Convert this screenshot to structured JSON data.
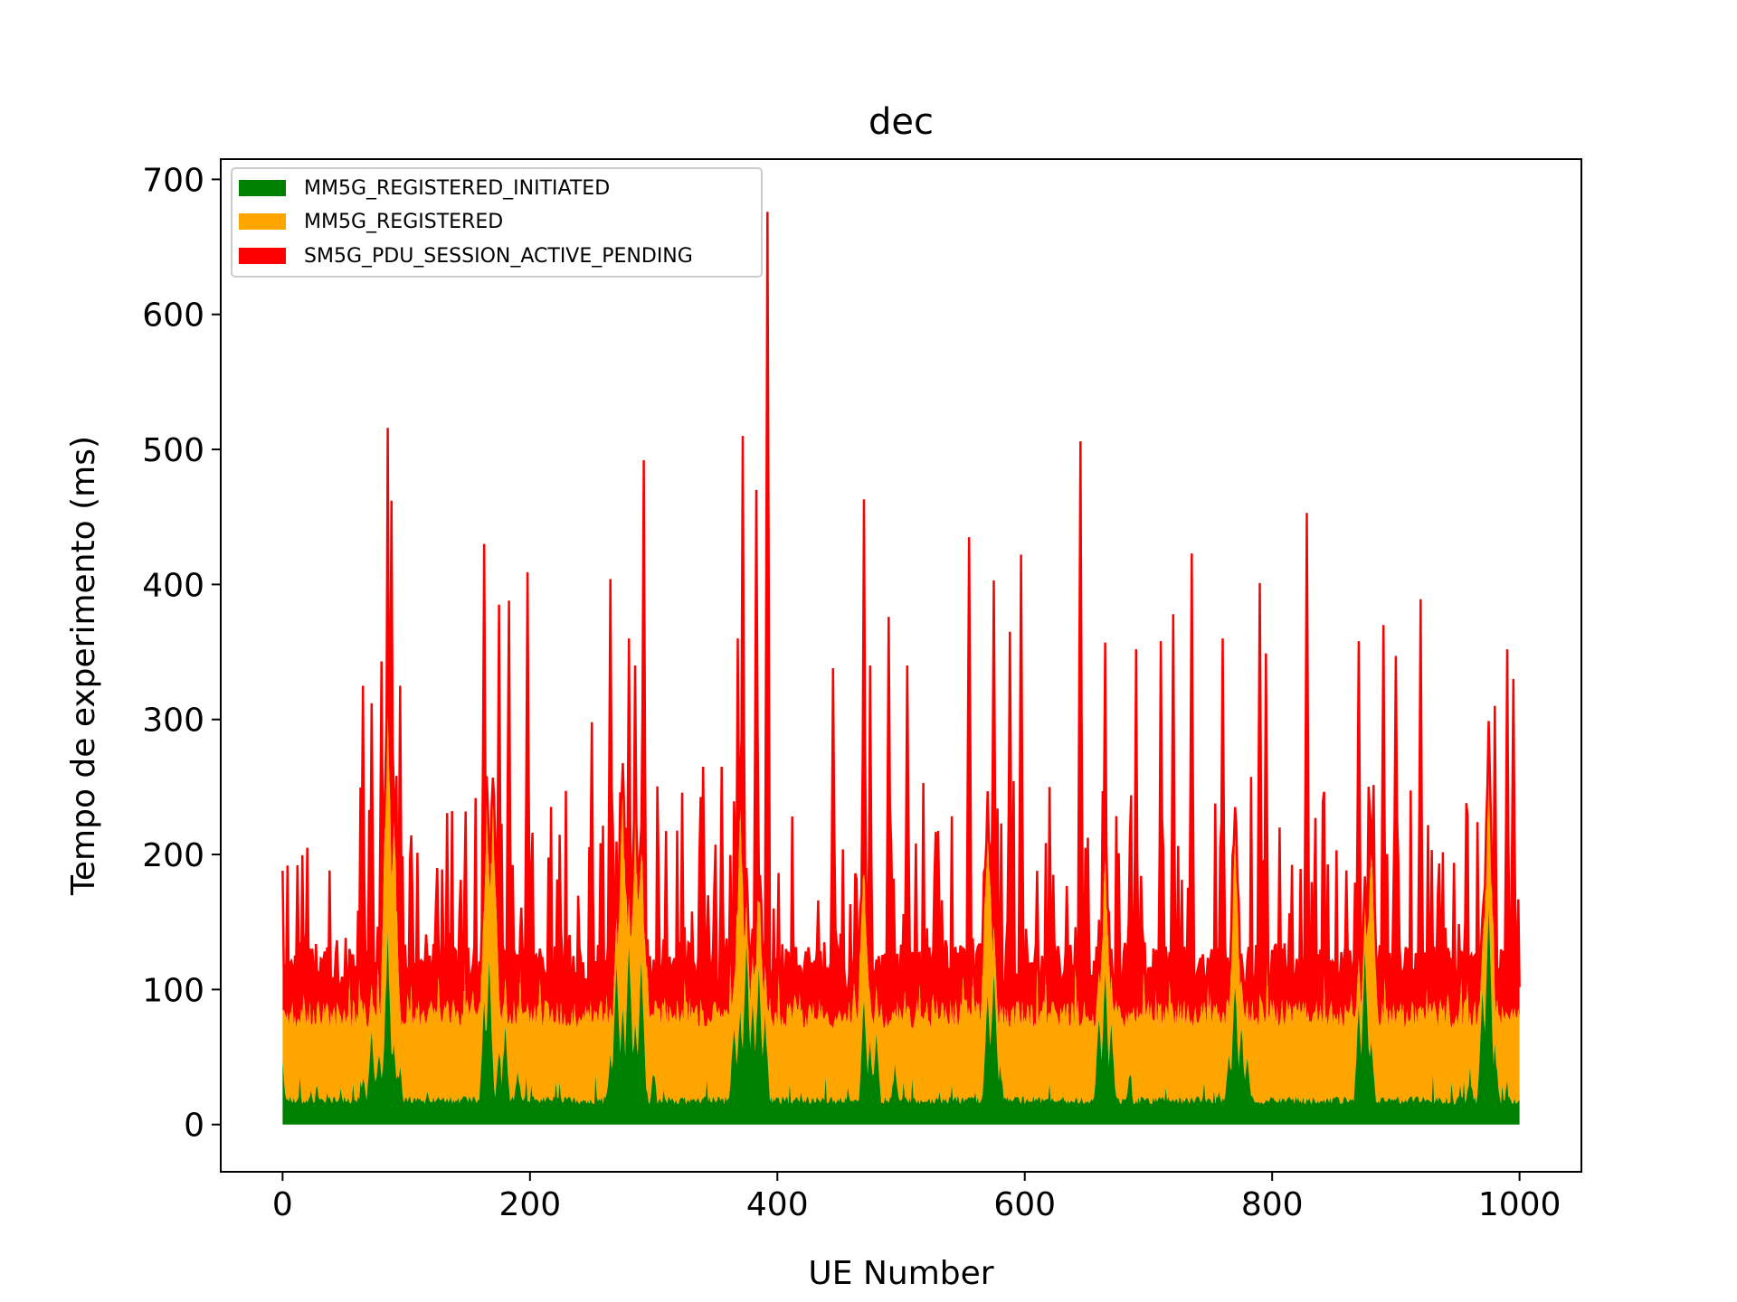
{
  "chart_data": {
    "type": "area",
    "stacked": true,
    "title": "dec",
    "xlabel": "UE Number",
    "ylabel": "Tempo de experimento (ms)",
    "xlim": [
      -50,
      1050
    ],
    "ylim": [
      -35,
      715
    ],
    "xticks": [
      0,
      200,
      400,
      600,
      800,
      1000
    ],
    "yticks": [
      0,
      100,
      200,
      300,
      400,
      500,
      600,
      700
    ],
    "legend_position": "upper-left",
    "legend": [
      {
        "name": "MM5G_REGISTERED_INITIATED",
        "color": "#008000"
      },
      {
        "name": "MM5G_REGISTERED",
        "color": "#ffa500"
      },
      {
        "name": "SM5G_PDU_SESSION_ACTIVE_PENDING",
        "color": "#ff0000"
      }
    ],
    "series": [
      {
        "name": "MM5G_REGISTERED_INITIATED",
        "color": "#008000",
        "baseline": 18,
        "spikes": [
          [
            0,
            45
          ],
          [
            65,
            35
          ],
          [
            72,
            70
          ],
          [
            78,
            55
          ],
          [
            82,
            50
          ],
          [
            85,
            140
          ],
          [
            90,
            60
          ],
          [
            95,
            40
          ],
          [
            163,
            90
          ],
          [
            167,
            120
          ],
          [
            175,
            55
          ],
          [
            180,
            70
          ],
          [
            190,
            40
          ],
          [
            265,
            55
          ],
          [
            270,
            120
          ],
          [
            275,
            85
          ],
          [
            280,
            135
          ],
          [
            285,
            75
          ],
          [
            290,
            120
          ],
          [
            300,
            40
          ],
          [
            365,
            75
          ],
          [
            370,
            85
          ],
          [
            375,
            135
          ],
          [
            380,
            90
          ],
          [
            385,
            115
          ],
          [
            390,
            80
          ],
          [
            470,
            95
          ],
          [
            475,
            60
          ],
          [
            480,
            65
          ],
          [
            495,
            45
          ],
          [
            570,
            100
          ],
          [
            575,
            115
          ],
          [
            580,
            45
          ],
          [
            660,
            80
          ],
          [
            665,
            110
          ],
          [
            670,
            75
          ],
          [
            685,
            40
          ],
          [
            765,
            50
          ],
          [
            770,
            105
          ],
          [
            775,
            75
          ],
          [
            780,
            50
          ],
          [
            870,
            85
          ],
          [
            875,
            130
          ],
          [
            880,
            60
          ],
          [
            960,
            40
          ],
          [
            970,
            95
          ],
          [
            975,
            165
          ],
          [
            980,
            60
          ],
          [
            990,
            30
          ]
        ]
      },
      {
        "name": "MM5G_REGISTERED",
        "color": "#ffa500",
        "baseline": 82,
        "peaks": [
          [
            85,
            310
          ],
          [
            90,
            230
          ],
          [
            165,
            230
          ],
          [
            170,
            245
          ],
          [
            275,
            255
          ],
          [
            285,
            230
          ],
          [
            290,
            210
          ],
          [
            370,
            230
          ],
          [
            385,
            175
          ],
          [
            470,
            200
          ],
          [
            570,
            230
          ],
          [
            665,
            200
          ],
          [
            770,
            220
          ],
          [
            880,
            210
          ],
          [
            975,
            265
          ]
        ]
      },
      {
        "name": "SM5G_PDU_SESSION_ACTIVE_PENDING",
        "color": "#ff0000",
        "baseline": 115,
        "peaks": [
          [
            0,
            188
          ],
          [
            12,
            192
          ],
          [
            20,
            205
          ],
          [
            65,
            325
          ],
          [
            72,
            312
          ],
          [
            80,
            343
          ],
          [
            85,
            516
          ],
          [
            88,
            462
          ],
          [
            95,
            325
          ],
          [
            125,
            190
          ],
          [
            163,
            430
          ],
          [
            175,
            385
          ],
          [
            183,
            388
          ],
          [
            198,
            409
          ],
          [
            250,
            298
          ],
          [
            265,
            404
          ],
          [
            280,
            360
          ],
          [
            285,
            340
          ],
          [
            292,
            492
          ],
          [
            340,
            265
          ],
          [
            355,
            265
          ],
          [
            368,
            360
          ],
          [
            372,
            510
          ],
          [
            383,
            470
          ],
          [
            392,
            676
          ],
          [
            445,
            338
          ],
          [
            470,
            463
          ],
          [
            475,
            340
          ],
          [
            490,
            376
          ],
          [
            505,
            340
          ],
          [
            555,
            435
          ],
          [
            575,
            403
          ],
          [
            588,
            365
          ],
          [
            597,
            422
          ],
          [
            645,
            506
          ],
          [
            665,
            357
          ],
          [
            690,
            352
          ],
          [
            710,
            358
          ],
          [
            720,
            378
          ],
          [
            735,
            423
          ],
          [
            760,
            360
          ],
          [
            790,
            401
          ],
          [
            795,
            349
          ],
          [
            828,
            453
          ],
          [
            870,
            358
          ],
          [
            890,
            370
          ],
          [
            900,
            347
          ],
          [
            920,
            389
          ],
          [
            980,
            310
          ],
          [
            990,
            352
          ],
          [
            995,
            330
          ]
        ]
      }
    ]
  }
}
